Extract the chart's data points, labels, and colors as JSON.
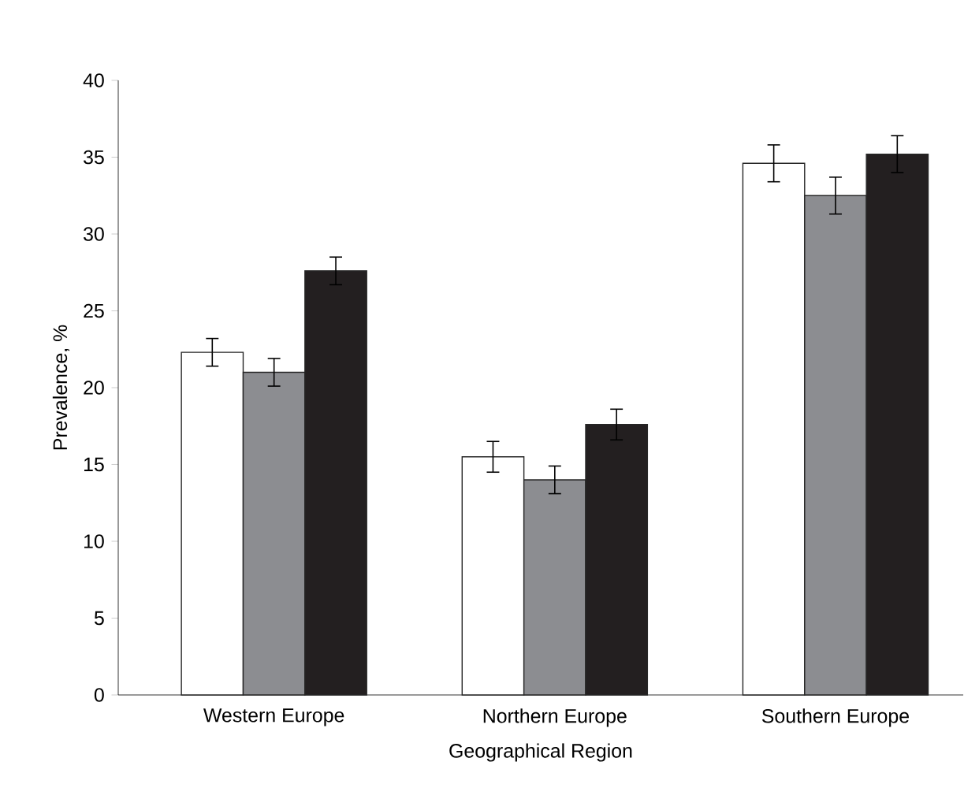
{
  "chart_data": {
    "type": "bar",
    "xlabel": "Geographical Region",
    "ylabel": "Prevalence, %",
    "categories": [
      "Western Europe",
      "Northern Europe",
      "Southern Europe"
    ],
    "series": [
      {
        "color": "#ffffff",
        "values": [
          22.3,
          15.5,
          34.6
        ],
        "errors": [
          0.9,
          1.0,
          1.2
        ]
      },
      {
        "color": "#8c8d91",
        "values": [
          21.0,
          14.0,
          32.5
        ],
        "errors": [
          0.9,
          0.9,
          1.2
        ]
      },
      {
        "color": "#231f20",
        "values": [
          27.6,
          17.6,
          35.2
        ],
        "errors": [
          0.9,
          1.0,
          1.2
        ]
      }
    ],
    "ylim": [
      0,
      40
    ],
    "yticks": [
      0,
      5,
      10,
      15,
      20,
      25,
      30,
      35,
      40
    ],
    "grid": false
  }
}
